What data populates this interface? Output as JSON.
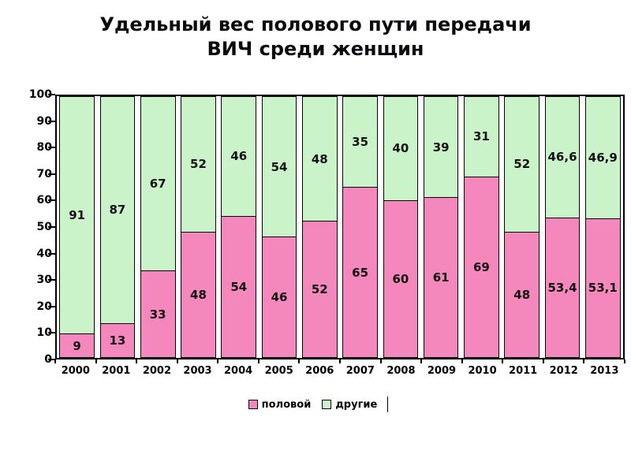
{
  "title": {
    "line1": "Удельный вес полового пути передачи",
    "line2": "ВИЧ среди женщин"
  },
  "chart_data": {
    "type": "bar",
    "subtype": "stacked-100-percent",
    "title": "Удельный вес полового пути передачи ВИЧ среди женщин",
    "categories": [
      "2000",
      "2001",
      "2002",
      "2003",
      "2004",
      "2005",
      "2006",
      "2007",
      "2008",
      "2009",
      "2010",
      "2011",
      "2012",
      "2013"
    ],
    "series": [
      {
        "name": "половой",
        "color": "#F487BB",
        "values": [
          9,
          13,
          33,
          48,
          54,
          46,
          52,
          65,
          60,
          61,
          69,
          48,
          53.4,
          53.1
        ],
        "labels": [
          "9",
          "13",
          "33",
          "48",
          "54",
          "46",
          "52",
          "65",
          "60",
          "61",
          "69",
          "48",
          "53,4",
          "53,1"
        ]
      },
      {
        "name": "другие",
        "color": "#CAF3CA",
        "values": [
          91,
          87,
          67,
          52,
          46,
          54,
          48,
          35,
          40,
          39,
          31,
          52,
          46.6,
          46.9
        ],
        "labels": [
          "91",
          "87",
          "67",
          "52",
          "46",
          "54",
          "48",
          "35",
          "40",
          "39",
          "31",
          "52",
          "46,6",
          "46,9"
        ]
      }
    ],
    "ylim": [
      0,
      100
    ],
    "yticks": [
      0,
      10,
      20,
      30,
      40,
      50,
      60,
      70,
      80,
      90,
      100
    ],
    "grid": false,
    "legend_position": "bottom",
    "legend": [
      "половой",
      "другие"
    ]
  }
}
